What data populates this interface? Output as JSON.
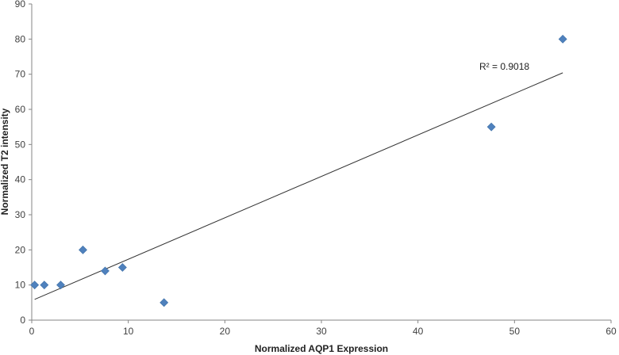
{
  "chart_data": {
    "type": "scatter",
    "title": "",
    "xlabel": "Normalized AQP1 Expression",
    "ylabel": "Normalized T2 intensity",
    "xlim": [
      0,
      60
    ],
    "ylim": [
      0,
      90
    ],
    "xticks": [
      0,
      10,
      20,
      30,
      40,
      50,
      60
    ],
    "yticks": [
      0,
      10,
      20,
      30,
      40,
      50,
      60,
      70,
      80,
      90
    ],
    "grid": false,
    "legend": "none",
    "marker": "diamond",
    "marker_color": "#4f81bd",
    "line_color": "#333333",
    "series": [
      {
        "x": [
          0.3,
          1.3,
          3.0,
          5.3,
          7.6,
          9.4,
          13.7,
          47.6,
          55.0
        ],
        "y": [
          10,
          10,
          10,
          20,
          14,
          15,
          5,
          55,
          80
        ]
      }
    ],
    "trendline": {
      "type": "linear",
      "x": [
        0.3,
        55.0
      ],
      "y": [
        5.9,
        70.4
      ],
      "label": "R² = 0.9018"
    }
  }
}
